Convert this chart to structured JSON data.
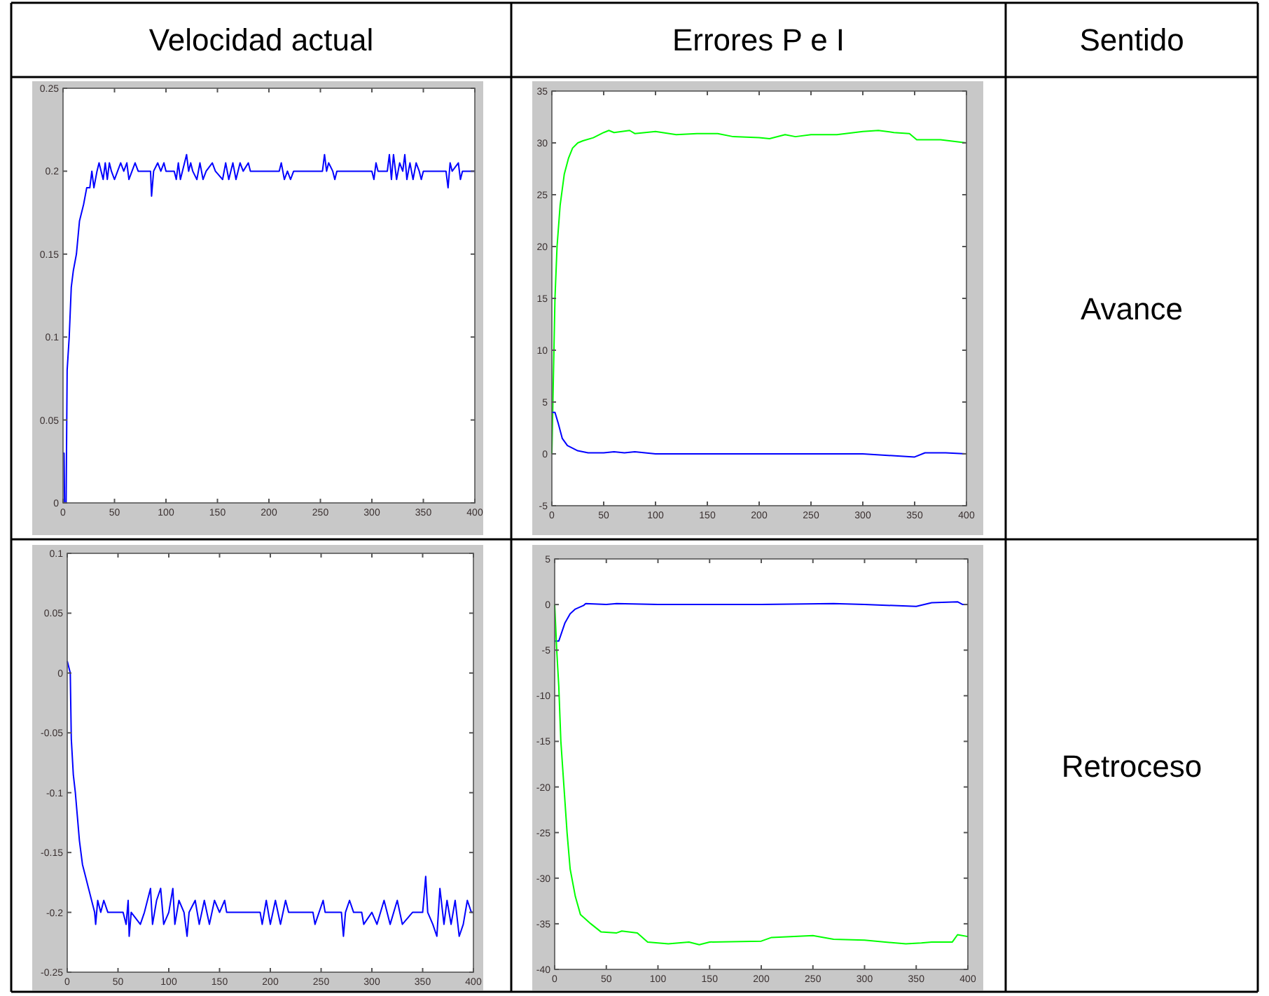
{
  "chart_data": [
    {
      "type": "line",
      "title": "Velocidad actual",
      "xlim": [
        0,
        400
      ],
      "ylim": [
        0,
        0.25
      ],
      "xticks": [
        0,
        50,
        100,
        150,
        200,
        250,
        300,
        350,
        400
      ],
      "yticks": [
        0,
        0.05,
        0.1,
        0.15,
        0.2,
        0.25
      ],
      "grid": false,
      "series": [
        {
          "color": "#0000ff",
          "x": [
            0,
            1,
            1.5,
            3,
            4,
            6,
            8,
            10,
            13,
            16,
            20,
            23,
            26,
            28,
            30,
            33,
            35,
            37,
            39,
            41,
            43,
            45,
            47,
            50,
            53,
            56,
            59,
            62,
            64,
            67,
            70,
            73,
            85,
            86,
            88,
            92,
            95,
            98,
            100,
            108,
            110,
            112,
            114,
            116,
            120,
            122,
            124,
            126,
            130,
            133,
            136,
            139,
            145,
            148,
            155,
            158,
            161,
            165,
            168,
            172,
            175,
            180,
            182,
            210,
            212,
            215,
            218,
            221,
            224,
            252,
            254,
            256,
            258,
            262,
            264,
            266,
            300,
            302,
            304,
            306,
            315,
            317,
            319,
            321,
            324,
            327,
            330,
            332,
            334,
            337,
            340,
            343,
            346,
            348,
            350,
            372,
            374,
            376,
            378,
            384,
            386,
            388,
            400
          ],
          "values": [
            0.03,
            0.03,
            0,
            0,
            0.08,
            0.1,
            0.13,
            0.14,
            0.15,
            0.17,
            0.18,
            0.19,
            0.19,
            0.2,
            0.19,
            0.2,
            0.205,
            0.2,
            0.195,
            0.205,
            0.195,
            0.205,
            0.2,
            0.195,
            0.2,
            0.205,
            0.2,
            0.205,
            0.195,
            0.2,
            0.205,
            0.2,
            0.2,
            0.185,
            0.2,
            0.205,
            0.2,
            0.205,
            0.2,
            0.2,
            0.195,
            0.205,
            0.195,
            0.2,
            0.21,
            0.2,
            0.205,
            0.2,
            0.195,
            0.205,
            0.195,
            0.2,
            0.205,
            0.2,
            0.195,
            0.205,
            0.195,
            0.205,
            0.195,
            0.205,
            0.2,
            0.205,
            0.2,
            0.2,
            0.205,
            0.195,
            0.2,
            0.195,
            0.2,
            0.2,
            0.21,
            0.2,
            0.205,
            0.2,
            0.195,
            0.2,
            0.2,
            0.195,
            0.205,
            0.2,
            0.2,
            0.21,
            0.195,
            0.21,
            0.195,
            0.205,
            0.2,
            0.21,
            0.195,
            0.205,
            0.195,
            0.205,
            0.2,
            0.195,
            0.2,
            0.2,
            0.19,
            0.205,
            0.2,
            0.205,
            0.195,
            0.2,
            0.2
          ]
        }
      ]
    },
    {
      "type": "line",
      "title": "Errores P e I",
      "xlim": [
        0,
        400
      ],
      "ylim": [
        -5,
        35
      ],
      "xticks": [
        0,
        50,
        100,
        150,
        200,
        250,
        300,
        350,
        400
      ],
      "yticks": [
        -5,
        0,
        5,
        10,
        15,
        20,
        25,
        30,
        35
      ],
      "grid": false,
      "series": [
        {
          "color": "#00ff00",
          "x": [
            0,
            1,
            3,
            5,
            8,
            12,
            16,
            20,
            25,
            30,
            40,
            50,
            55,
            60,
            75,
            80,
            100,
            120,
            140,
            160,
            175,
            200,
            210,
            225,
            235,
            250,
            275,
            300,
            315,
            330,
            345,
            352,
            375,
            400
          ],
          "values": [
            0,
            5,
            15,
            20,
            24,
            27,
            28.5,
            29.5,
            30,
            30.2,
            30.5,
            31,
            31.2,
            31,
            31.2,
            30.9,
            31.1,
            30.8,
            30.9,
            30.9,
            30.6,
            30.5,
            30.4,
            30.8,
            30.6,
            30.8,
            30.8,
            31.1,
            31.2,
            31,
            30.9,
            30.3,
            30.3,
            30
          ]
        },
        {
          "color": "#0000ff",
          "x": [
            0,
            3,
            6,
            10,
            15,
            25,
            35,
            50,
            60,
            70,
            80,
            100,
            150,
            200,
            250,
            300,
            350,
            360,
            380,
            400
          ],
          "values": [
            4,
            4,
            3,
            1.5,
            0.8,
            0.3,
            0.1,
            0.1,
            0.2,
            0.1,
            0.2,
            0,
            0,
            0,
            0,
            0,
            -0.3,
            0.1,
            0.1,
            0
          ]
        }
      ]
    },
    {
      "type": "line",
      "xlim": [
        0,
        400
      ],
      "ylim": [
        -0.25,
        0.1
      ],
      "xticks": [
        0,
        50,
        100,
        150,
        200,
        250,
        300,
        350,
        400
      ],
      "yticks": [
        -0.25,
        -0.2,
        -0.15,
        -0.1,
        -0.05,
        0,
        0.05,
        0.1
      ],
      "grid": false,
      "series": [
        {
          "color": "#0000ff",
          "x": [
            0,
            3,
            4,
            6,
            8,
            10,
            12,
            15,
            18,
            21,
            24,
            27,
            28,
            30,
            33,
            36,
            40,
            55,
            58,
            60,
            61,
            63,
            72,
            76,
            82,
            84,
            88,
            92,
            95,
            100,
            104,
            106,
            110,
            115,
            118,
            120,
            126,
            130,
            135,
            140,
            145,
            150,
            155,
            157,
            190,
            192,
            196,
            200,
            205,
            210,
            215,
            218,
            242,
            244,
            252,
            254,
            270,
            272,
            274,
            278,
            282,
            290,
            292,
            300,
            305,
            312,
            318,
            325,
            330,
            340,
            350,
            353,
            355,
            360,
            364,
            367,
            371,
            374,
            378,
            382,
            386,
            390,
            394,
            398,
            400
          ],
          "values": [
            0.01,
            0,
            -0.055,
            -0.085,
            -0.1,
            -0.12,
            -0.14,
            -0.16,
            -0.17,
            -0.18,
            -0.19,
            -0.2,
            -0.21,
            -0.19,
            -0.2,
            -0.19,
            -0.2,
            -0.2,
            -0.21,
            -0.19,
            -0.22,
            -0.2,
            -0.21,
            -0.2,
            -0.18,
            -0.21,
            -0.19,
            -0.18,
            -0.21,
            -0.2,
            -0.18,
            -0.21,
            -0.19,
            -0.2,
            -0.22,
            -0.2,
            -0.19,
            -0.21,
            -0.19,
            -0.21,
            -0.19,
            -0.2,
            -0.19,
            -0.2,
            -0.2,
            -0.21,
            -0.19,
            -0.21,
            -0.19,
            -0.21,
            -0.19,
            -0.2,
            -0.2,
            -0.21,
            -0.19,
            -0.2,
            -0.2,
            -0.22,
            -0.2,
            -0.19,
            -0.2,
            -0.2,
            -0.21,
            -0.2,
            -0.21,
            -0.19,
            -0.21,
            -0.19,
            -0.21,
            -0.2,
            -0.2,
            -0.17,
            -0.2,
            -0.21,
            -0.22,
            -0.18,
            -0.21,
            -0.19,
            -0.21,
            -0.19,
            -0.22,
            -0.21,
            -0.19,
            -0.2,
            -0.2
          ]
        }
      ]
    },
    {
      "type": "line",
      "xlim": [
        0,
        400
      ],
      "ylim": [
        -40,
        5
      ],
      "xticks": [
        0,
        50,
        100,
        150,
        200,
        250,
        300,
        350,
        400
      ],
      "yticks": [
        -40,
        -35,
        -30,
        -25,
        -20,
        -15,
        -10,
        -5,
        0,
        5
      ],
      "grid": false,
      "series": [
        {
          "color": "#0000ff",
          "x": [
            0,
            4,
            7,
            10,
            15,
            20,
            28,
            30,
            50,
            60,
            100,
            150,
            200,
            270,
            300,
            350,
            365,
            390,
            395,
            400
          ],
          "values": [
            -4,
            -4,
            -3,
            -2,
            -1,
            -0.5,
            -0.1,
            0.1,
            0,
            0.1,
            0,
            0,
            0,
            0.1,
            0,
            -0.2,
            0.2,
            0.3,
            0,
            0
          ]
        },
        {
          "color": "#00ff00",
          "x": [
            0,
            2,
            4,
            6,
            9,
            12,
            15,
            20,
            25,
            35,
            45,
            60,
            65,
            80,
            90,
            110,
            130,
            140,
            150,
            200,
            210,
            250,
            270,
            300,
            340,
            355,
            365,
            385,
            390,
            400
          ],
          "values": [
            0,
            -5,
            -9,
            -15,
            -20,
            -25,
            -29,
            -32,
            -34,
            -35,
            -35.9,
            -36,
            -35.8,
            -36,
            -37,
            -37.2,
            -37,
            -37.3,
            -37,
            -36.9,
            -36.5,
            -36.3,
            -36.7,
            -36.8,
            -37.2,
            -37.1,
            -37,
            -37,
            -36.2,
            -36.4
          ]
        }
      ]
    },
    {
      "type": "other",
      "title": "Sentido",
      "annotations": [
        "Avance",
        "Retroceso"
      ]
    }
  ]
}
